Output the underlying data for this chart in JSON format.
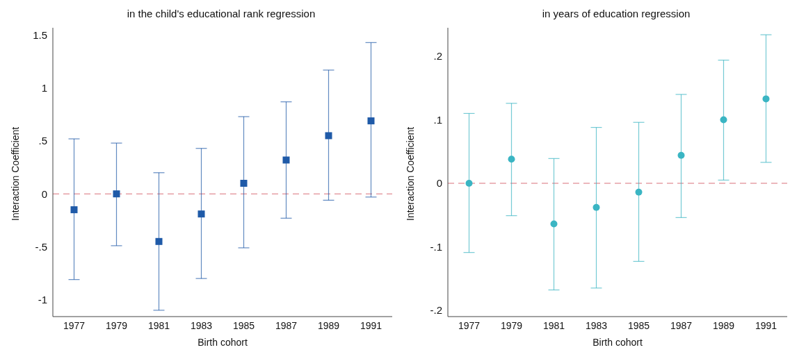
{
  "chart_data": [
    {
      "type": "scatter",
      "title": "in the child's educational rank regression",
      "xlabel": "Birth cohort",
      "ylabel": "Interaction Coefficient",
      "categories": [
        "1977",
        "1979",
        "1981",
        "1983",
        "1985",
        "1987",
        "1989",
        "1991"
      ],
      "series": [
        {
          "color": "#1f5aa8",
          "values": [
            -0.15,
            0.0,
            -0.45,
            -0.19,
            0.1,
            0.32,
            0.55,
            0.69
          ],
          "errors": [
            [
              -0.81,
              0.52
            ],
            [
              -0.49,
              0.48
            ],
            [
              -1.1,
              0.2
            ],
            [
              -0.8,
              0.43
            ],
            [
              -0.51,
              0.73
            ],
            [
              -0.23,
              0.87
            ],
            [
              -0.06,
              1.17
            ],
            [
              -0.03,
              1.43
            ]
          ]
        }
      ],
      "marker": "square",
      "ylim": [
        -1.16,
        1.57
      ],
      "yticks": [
        {
          "value": -1,
          "label": "-1"
        },
        {
          "value": -0.5,
          "label": "-.5"
        },
        0,
        {
          "value": 0.5,
          "label": ".5"
        },
        1,
        1.5
      ],
      "ref_lines": [
        {
          "axis": "y",
          "value": 0,
          "color": "#d9707a",
          "line_style": "dashed"
        }
      ],
      "grid": false,
      "legend": false
    },
    {
      "type": "scatter",
      "title": "in years of education regression",
      "xlabel": "Birth cohort",
      "ylabel": "Interaction Coefficient",
      "categories": [
        "1977",
        "1979",
        "1981",
        "1983",
        "1985",
        "1987",
        "1989",
        "1991"
      ],
      "series": [
        {
          "color": "#3ab5c3",
          "values": [
            0.0,
            0.038,
            -0.064,
            -0.038,
            -0.014,
            0.044,
            0.1,
            0.133
          ],
          "errors": [
            [
              -0.109,
              0.11
            ],
            [
              -0.051,
              0.126
            ],
            [
              -0.168,
              0.039
            ],
            [
              -0.165,
              0.088
            ],
            [
              -0.123,
              0.096
            ],
            [
              -0.054,
              0.14
            ],
            [
              0.005,
              0.194
            ],
            [
              0.033,
              0.234
            ]
          ]
        }
      ],
      "marker": "circle",
      "ylim": [
        -0.21,
        0.245
      ],
      "yticks": [
        {
          "value": -0.2,
          "label": "-.2"
        },
        {
          "value": -0.1,
          "label": "-.1"
        },
        0,
        {
          "value": 0.1,
          "label": ".1"
        },
        {
          "value": 0.2,
          "label": ".2"
        }
      ],
      "ref_lines": [
        {
          "axis": "y",
          "value": 0,
          "color": "#d9707a",
          "line_style": "dashed"
        }
      ],
      "grid": false,
      "legend": false
    }
  ]
}
